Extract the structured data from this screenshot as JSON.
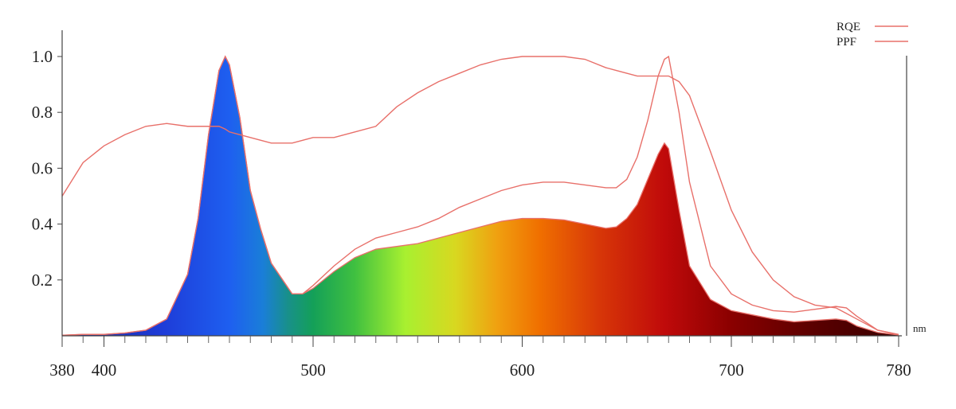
{
  "chart_data": {
    "type": "spectrum",
    "x": [
      380,
      390,
      400,
      410,
      420,
      430,
      440,
      445,
      450,
      455,
      458,
      460,
      465,
      470,
      475,
      480,
      490,
      495,
      500,
      510,
      520,
      530,
      540,
      550,
      560,
      570,
      580,
      590,
      600,
      610,
      620,
      630,
      640,
      645,
      650,
      655,
      660,
      665,
      668,
      670,
      675,
      680,
      690,
      700,
      710,
      720,
      730,
      740,
      750,
      755,
      760,
      770,
      780
    ],
    "x_unit": "nm",
    "xlim": [
      380,
      780
    ],
    "xticks": [
      380,
      400,
      500,
      600,
      700,
      780
    ],
    "xminorticks": [
      390,
      410,
      420,
      430,
      440,
      450,
      460,
      470,
      480,
      490,
      510,
      520,
      530,
      540,
      550,
      560,
      570,
      580,
      590,
      610,
      620,
      630,
      640,
      650,
      660,
      670,
      680,
      690,
      710,
      720,
      730,
      740,
      750,
      760,
      770
    ],
    "ylim": [
      0,
      1.1
    ],
    "yticks": [
      0.2,
      0.4,
      0.6,
      0.8,
      {
        "value": 1,
        "label": "1.0"
      }
    ],
    "spectrum": {
      "values": [
        0.002,
        0.005,
        0.005,
        0.01,
        0.02,
        0.06,
        0.22,
        0.42,
        0.72,
        0.95,
        1.0,
        0.97,
        0.78,
        0.52,
        0.38,
        0.26,
        0.15,
        0.15,
        0.17,
        0.23,
        0.28,
        0.31,
        0.32,
        0.33,
        0.35,
        0.37,
        0.39,
        0.41,
        0.42,
        0.42,
        0.415,
        0.4,
        0.385,
        0.39,
        0.42,
        0.47,
        0.56,
        0.65,
        0.69,
        0.67,
        0.45,
        0.25,
        0.13,
        0.09,
        0.075,
        0.06,
        0.05,
        0.055,
        0.06,
        0.055,
        0.035,
        0.012,
        0.003
      ]
    },
    "series": [
      {
        "name": "RQE",
        "color": "#e8706a",
        "values": [
          0.5,
          0.62,
          0.68,
          0.72,
          0.75,
          0.76,
          0.75,
          0.75,
          0.75,
          0.75,
          0.74,
          0.73,
          0.72,
          0.71,
          0.7,
          0.69,
          0.69,
          0.7,
          0.71,
          0.71,
          0.73,
          0.75,
          0.82,
          0.87,
          0.91,
          0.94,
          0.97,
          0.99,
          1.0,
          1.0,
          1.0,
          0.99,
          0.96,
          0.95,
          0.94,
          0.93,
          0.93,
          0.93,
          0.93,
          0.93,
          0.91,
          0.86,
          0.66,
          0.45,
          0.3,
          0.2,
          0.14,
          0.11,
          0.1,
          0.08,
          0.06,
          0.02,
          0.005
        ]
      },
      {
        "name": "PPF",
        "color": "#e8706a",
        "values": [
          0.002,
          0.005,
          0.005,
          0.01,
          0.02,
          0.06,
          0.22,
          0.42,
          0.72,
          0.95,
          1.0,
          0.97,
          0.78,
          0.52,
          0.38,
          0.26,
          0.15,
          0.15,
          0.18,
          0.25,
          0.31,
          0.35,
          0.37,
          0.39,
          0.42,
          0.46,
          0.49,
          0.52,
          0.54,
          0.55,
          0.55,
          0.54,
          0.53,
          0.53,
          0.56,
          0.64,
          0.77,
          0.93,
          0.99,
          1.0,
          0.8,
          0.55,
          0.25,
          0.15,
          0.11,
          0.09,
          0.085,
          0.095,
          0.105,
          0.1,
          0.07,
          0.02,
          0.004
        ]
      }
    ]
  }
}
